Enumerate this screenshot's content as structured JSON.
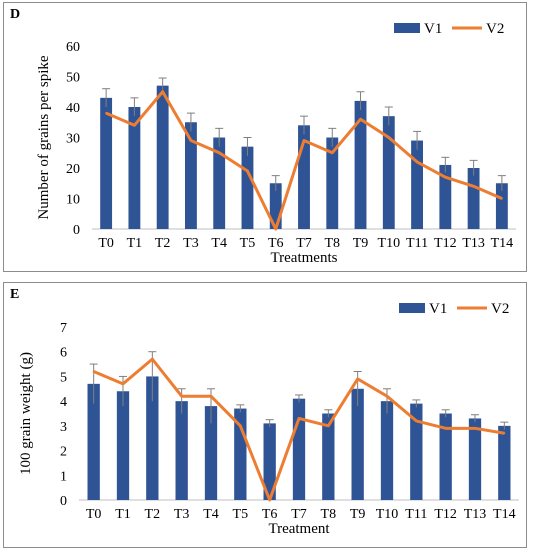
{
  "colors": {
    "v1": "#2f5496",
    "v2": "#ed7d31",
    "grid": "#d9d9d9",
    "err": "#7f7f7f"
  },
  "chart_data": [
    {
      "panel": "D",
      "type": "bar",
      "categories": [
        "T0",
        "T1",
        "T2",
        "T3",
        "T4",
        "T5",
        "T6",
        "T7",
        "T8",
        "T9",
        "T10",
        "T11",
        "T12",
        "T13",
        "T14"
      ],
      "series": [
        {
          "name": "V1",
          "kind": "bar",
          "values": [
            43,
            40,
            47,
            35,
            30,
            27,
            15,
            34,
            30,
            42,
            37,
            29,
            21,
            20,
            15
          ],
          "errors": [
            3,
            3,
            2.5,
            3,
            3,
            3,
            2.5,
            3,
            3,
            3,
            3,
            3,
            2.5,
            2.5,
            2.5
          ]
        },
        {
          "name": "V2",
          "kind": "line",
          "values": [
            38,
            34,
            45,
            29,
            25,
            19,
            0,
            29,
            25,
            36,
            30,
            22,
            17,
            14,
            10
          ]
        }
      ],
      "xlabel": "Treatments",
      "ylabel": "Number of grains per spike",
      "ylim": [
        0,
        60
      ],
      "yticks": [
        "0",
        "10",
        "20",
        "30",
        "40",
        "50",
        "60"
      ],
      "grid": false,
      "legend": "top-right"
    },
    {
      "panel": "E",
      "type": "bar",
      "categories": [
        "T0",
        "T1",
        "T2",
        "T3",
        "T4",
        "T5",
        "T6",
        "T7",
        "T8",
        "T9",
        "T10",
        "T11",
        "T12",
        "T13",
        "T14"
      ],
      "series": [
        {
          "name": "V1",
          "kind": "bar",
          "values": [
            4.7,
            4.4,
            5.0,
            4.0,
            3.8,
            3.7,
            3.1,
            4.1,
            3.5,
            4.5,
            4.0,
            3.9,
            3.5,
            3.3,
            3.0
          ],
          "errors": [
            0.8,
            0.6,
            1.0,
            0.5,
            0.7,
            0.15,
            0.15,
            0.15,
            0.15,
            0.7,
            0.5,
            0.15,
            0.15,
            0.15,
            0.15
          ]
        },
        {
          "name": "V2",
          "kind": "line",
          "values": [
            5.2,
            4.7,
            5.7,
            4.2,
            4.2,
            3.0,
            0,
            3.3,
            3.0,
            4.9,
            4.2,
            3.2,
            2.9,
            2.9,
            2.7
          ]
        }
      ],
      "xlabel": "Treatment",
      "ylabel": "100 grain weight (g)",
      "ylim": [
        0,
        7
      ],
      "yticks": [
        "0",
        "1",
        "2",
        "3",
        "4",
        "5",
        "6",
        "7"
      ],
      "grid": false,
      "legend": "top-right"
    }
  ]
}
